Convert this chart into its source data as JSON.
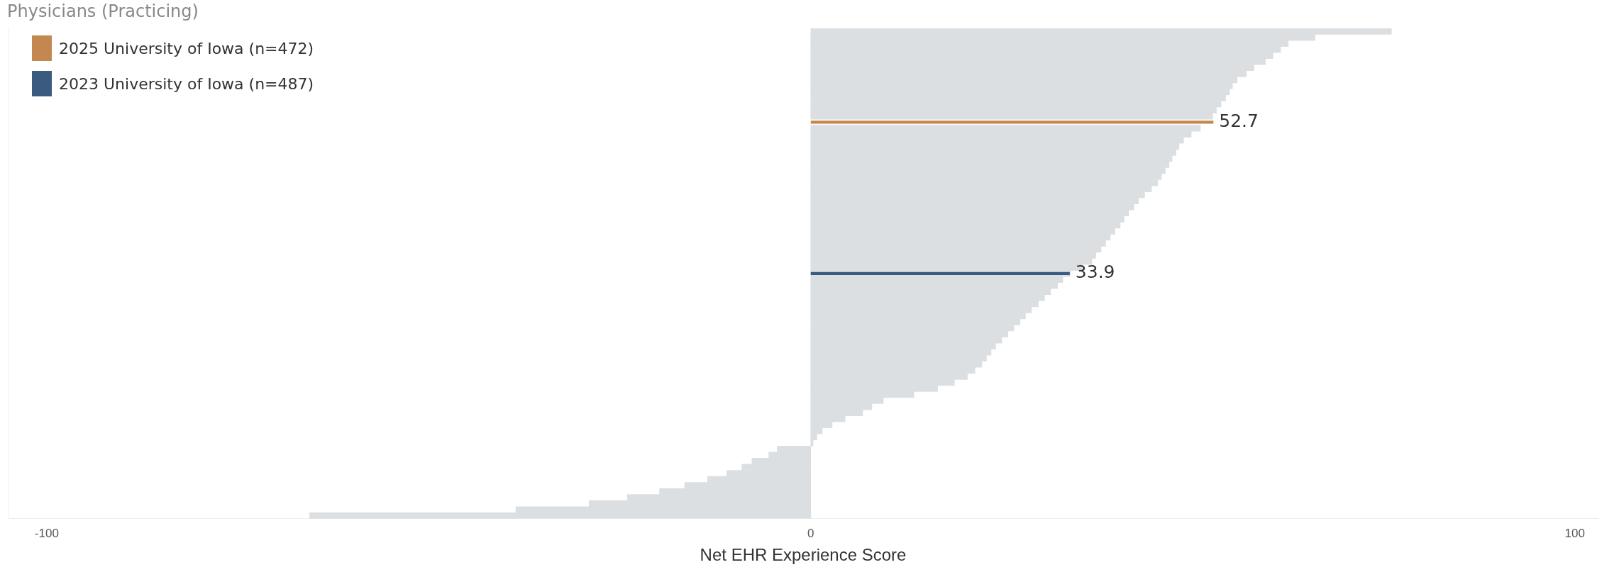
{
  "chart_data": {
    "type": "bar",
    "orientation": "horizontal",
    "title": "Physicians (Practicing)",
    "xlabel": "Net EHR Experience Score",
    "xlim": [
      -105,
      103
    ],
    "xticks": [
      -100,
      0,
      100
    ],
    "tick_labels": "x",
    "grid": false,
    "legend": "top left",
    "categories": [
      null,
      null,
      null,
      null,
      null,
      null,
      null,
      null,
      null,
      null,
      null,
      null,
      null,
      null,
      null,
      null,
      null,
      null,
      null,
      null,
      null,
      null,
      null,
      null,
      null,
      null,
      null,
      null,
      null,
      null,
      null,
      null,
      null,
      null,
      null,
      null,
      null,
      null,
      null,
      null,
      null,
      null,
      null,
      null,
      null,
      null,
      null,
      null,
      null,
      null,
      null,
      null,
      null,
      null,
      null,
      null,
      null,
      null,
      null,
      null,
      null,
      null,
      null,
      null,
      null,
      null,
      null,
      null,
      null,
      null,
      null,
      null,
      null,
      null,
      null,
      null,
      null,
      null,
      null,
      null,
      null
    ],
    "series": [
      {
        "color": "#dcdfe2",
        "values": [
          76,
          66,
          62.5,
          61.5,
          60.5,
          59.5,
          58,
          57,
          55.8,
          55.2,
          54.8,
          54.3,
          53.7,
          53.1,
          52.6,
          null,
          51,
          49.8,
          48.8,
          48.2,
          47.8,
          47.3,
          46.9,
          46.4,
          45.9,
          45.4,
          44.6,
          43.7,
          42.9,
          42.3,
          41.6,
          41,
          40.5,
          39.8,
          39.2,
          38.6,
          38,
          37.3,
          36.8,
          35.5,
          34,
          33,
          32.3,
          31.4,
          30.6,
          29.8,
          28.9,
          28.1,
          27.4,
          26.6,
          25.8,
          25,
          24.2,
          23.6,
          23,
          22.4,
          21.5,
          20.5,
          18.8,
          16.6,
          13.5,
          9.5,
          8,
          6.8,
          4.5,
          2.8,
          1.5,
          0.8,
          0.3,
          -4.4,
          -5.5,
          -7.7,
          -9,
          -11,
          -13.5,
          -16.5,
          -19.8,
          -24,
          -29,
          -38.6,
          -65.6
        ]
      },
      {
        "name": "2025 University of Iowa (n=472)",
        "color": "#c4874f",
        "values": [
          null,
          null,
          null,
          null,
          null,
          null,
          null,
          null,
          null,
          null,
          null,
          null,
          null,
          null,
          null,
          52.7,
          null,
          null,
          null,
          null,
          null,
          null,
          null,
          null,
          null,
          null,
          null,
          null,
          null,
          null,
          null,
          null,
          null,
          null,
          null,
          null,
          null,
          null,
          null,
          null,
          null,
          null,
          null,
          null,
          null,
          null,
          null,
          null,
          null,
          null,
          null,
          null,
          null,
          null,
          null,
          null,
          null,
          null,
          null,
          null,
          null,
          null,
          null,
          null,
          null,
          null,
          null,
          null,
          null,
          null,
          null,
          null,
          null,
          null,
          null,
          null,
          null,
          null,
          null,
          null,
          null
        ],
        "value_labels": [
          null,
          null,
          null,
          null,
          null,
          null,
          null,
          null,
          null,
          null,
          null,
          null,
          null,
          null,
          null,
          "52.7",
          null,
          null,
          null,
          null,
          null,
          null,
          null,
          null,
          null,
          null,
          null,
          null,
          null,
          null,
          null,
          null,
          null,
          null,
          null,
          null,
          null,
          null,
          null,
          null,
          null,
          null,
          null,
          null,
          null,
          null,
          null,
          null,
          null,
          null,
          null,
          null,
          null,
          null,
          null,
          null,
          null,
          null,
          null,
          null,
          null,
          null,
          null,
          null,
          null,
          null,
          null,
          null,
          null,
          null,
          null,
          null,
          null,
          null,
          null,
          null,
          null,
          null,
          null,
          null,
          null
        ]
      },
      {
        "name": "2023 University of Iowa (n=487)",
        "color": "#3b5a80",
        "values": [
          null,
          null,
          null,
          null,
          null,
          null,
          null,
          null,
          null,
          null,
          null,
          null,
          null,
          null,
          null,
          null,
          null,
          null,
          null,
          null,
          null,
          null,
          null,
          null,
          null,
          null,
          null,
          null,
          null,
          null,
          null,
          null,
          null,
          null,
          null,
          null,
          null,
          null,
          null,
          null,
          33.9,
          null,
          null,
          null,
          null,
          null,
          null,
          null,
          null,
          null,
          null,
          null,
          null,
          null,
          null,
          null,
          null,
          null,
          null,
          null,
          null,
          null,
          null,
          null,
          null,
          null,
          null,
          null,
          null,
          null,
          null,
          null,
          null,
          null,
          null,
          null,
          null,
          null,
          null,
          null,
          null
        ],
        "value_labels": [
          null,
          null,
          null,
          null,
          null,
          null,
          null,
          null,
          null,
          null,
          null,
          null,
          null,
          null,
          null,
          null,
          null,
          null,
          null,
          null,
          null,
          null,
          null,
          null,
          null,
          null,
          null,
          null,
          null,
          null,
          null,
          null,
          null,
          null,
          null,
          null,
          null,
          null,
          null,
          null,
          "33.9",
          null,
          null,
          null,
          null,
          null,
          null,
          null,
          null,
          null,
          null,
          null,
          null,
          null,
          null,
          null,
          null,
          null,
          null,
          null,
          null,
          null,
          null,
          null,
          null,
          null,
          null,
          null,
          null,
          null,
          null,
          null,
          null,
          null,
          null,
          null,
          null,
          null,
          null,
          null,
          null
        ]
      }
    ]
  }
}
